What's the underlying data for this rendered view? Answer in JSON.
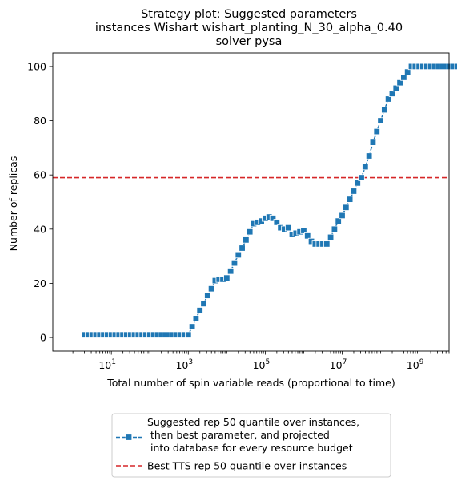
{
  "chart_data": {
    "type": "line",
    "title": [
      "Strategy plot: Suggested parameters",
      "instances Wishart wishart_planting_N_30_alpha_0.40",
      "solver pysa"
    ],
    "xlabel": "Total number of spin variable reads (proportional to time)",
    "ylabel": "Number of replicas",
    "xscale": "log",
    "xlim": [
      0.3,
      6000000000
    ],
    "ylim": [
      -5,
      105
    ],
    "x_ticks": [
      {
        "value": 10,
        "base": "10",
        "exp": "1"
      },
      {
        "value": 1000,
        "base": "10",
        "exp": "3"
      },
      {
        "value": 100000,
        "base": "10",
        "exp": "5"
      },
      {
        "value": 10000000,
        "base": "10",
        "exp": "7"
      },
      {
        "value": 1000000000,
        "base": "10",
        "exp": "9"
      }
    ],
    "y_ticks": [
      "0",
      "20",
      "40",
      "60",
      "80",
      "100"
    ],
    "grid": false,
    "legend_position": "below",
    "series": [
      {
        "name": "Suggested rep 50 quantile over instances,\n  then best parameter, and projected\n  into database for every resource budget",
        "style": "line-with-square-markers",
        "color": "#1f77b4",
        "log10_x_start": 0.3,
        "log10_x_step": 0.1,
        "y": [
          1,
          1,
          1,
          1,
          1,
          1,
          1,
          1,
          1,
          1,
          1,
          1,
          1,
          1,
          1,
          1,
          1,
          1,
          1,
          1,
          1,
          1,
          1,
          1,
          1,
          1,
          1,
          1,
          4,
          7,
          10,
          12.5,
          15.5,
          18,
          21,
          21.5,
          21.5,
          22,
          24.5,
          27.5,
          30.5,
          33,
          36,
          39,
          42,
          42.5,
          43,
          44,
          44.5,
          44,
          42.5,
          40.5,
          40,
          40.5,
          38,
          38.5,
          39,
          39.5,
          37.5,
          35.5,
          34.5,
          34.5,
          34.5,
          34.5,
          37,
          40,
          43,
          45,
          48,
          51,
          54,
          57,
          59,
          63,
          67,
          72,
          76,
          80,
          84,
          88,
          90,
          92,
          94,
          96,
          98,
          100,
          100,
          100,
          100,
          100,
          100,
          100,
          100,
          100,
          100,
          100,
          100,
          100,
          100,
          100
        ]
      },
      {
        "name": "Best TTS rep 50 quantile over instances",
        "style": "dashed-hline",
        "color": "#d62728",
        "y": 59
      }
    ]
  }
}
